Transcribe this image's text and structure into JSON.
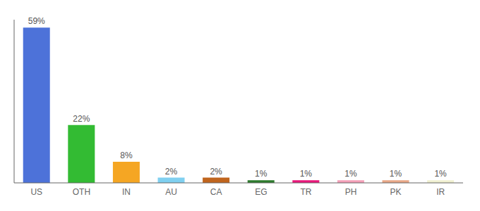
{
  "chart_data": {
    "type": "bar",
    "categories": [
      "US",
      "OTH",
      "IN",
      "AU",
      "CA",
      "EG",
      "TR",
      "PH",
      "PK",
      "IR"
    ],
    "values": [
      59,
      22,
      8,
      2,
      2,
      1,
      1,
      1,
      1,
      1
    ],
    "value_labels": [
      "59%",
      "22%",
      "8%",
      "2%",
      "2%",
      "1%",
      "1%",
      "1%",
      "1%",
      "1%"
    ],
    "data_labels": true,
    "colors": [
      "#4d72d9",
      "#33bb33",
      "#f5a623",
      "#80d0f0",
      "#c0651d",
      "#2d7a2d",
      "#e8187a",
      "#f4a0b8",
      "#e8a888",
      "#f0f0d0"
    ],
    "ylim": [
      0,
      62
    ],
    "tick_labels": "x"
  }
}
